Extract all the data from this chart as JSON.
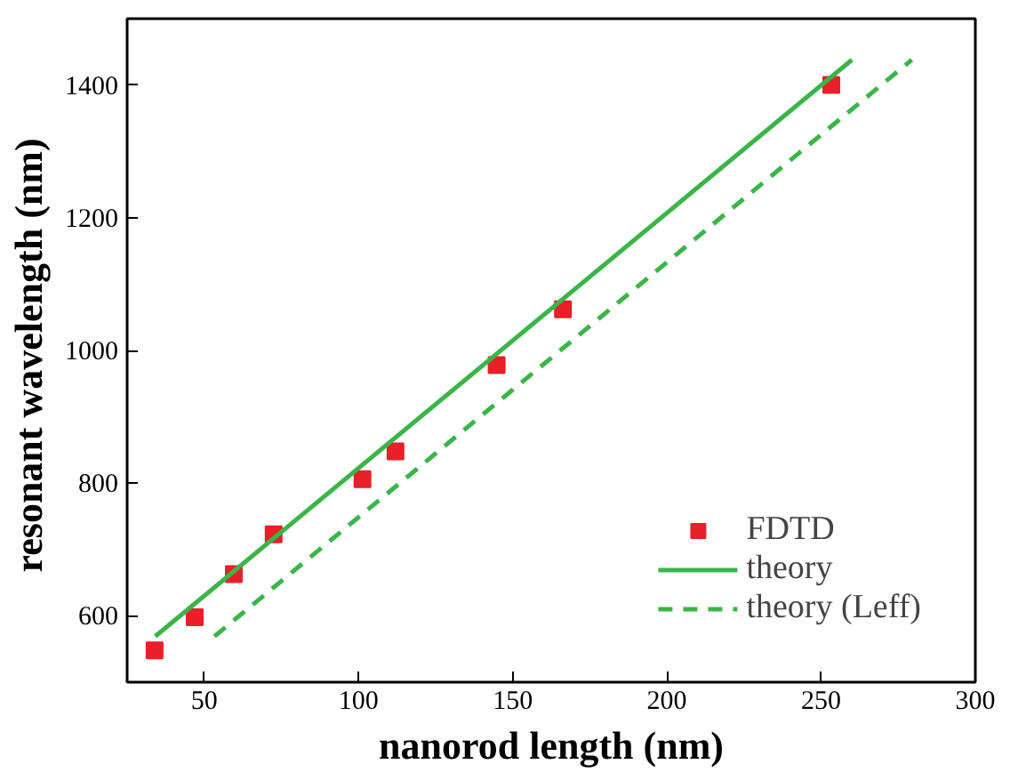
{
  "chart_data": {
    "type": "scatter",
    "xlabel": "nanorod length (nm)",
    "ylabel": "resonant  wavelength (nm)",
    "xlim": [
      25,
      300
    ],
    "ylim": [
      500,
      1500
    ],
    "xticks": [
      50,
      100,
      150,
      200,
      250,
      300
    ],
    "yticks": [
      600,
      800,
      1000,
      1200,
      1400
    ],
    "grid": false,
    "legend": "bottom right",
    "series": [
      {
        "name": "FDTD",
        "marker": "square",
        "color": "#e8202a",
        "x": [
          33.9,
          46.9,
          59.6,
          72.5,
          101.3,
          112,
          144.8,
          166.3,
          253.3
        ],
        "values": [
          548,
          598,
          663,
          723,
          806,
          848,
          978,
          1062,
          1400
        ]
      },
      {
        "name": "theory",
        "type": "line",
        "line_style": "solid",
        "color": "#3cb44a",
        "x": [
          34.1,
          260
        ],
        "values": [
          569,
          1438
        ]
      },
      {
        "name": "theory (Leff)",
        "type": "line",
        "line_style": "dashed",
        "color": "#3cb44a",
        "x": [
          53.3,
          279.4
        ],
        "values": [
          569,
          1438
        ]
      }
    ]
  }
}
